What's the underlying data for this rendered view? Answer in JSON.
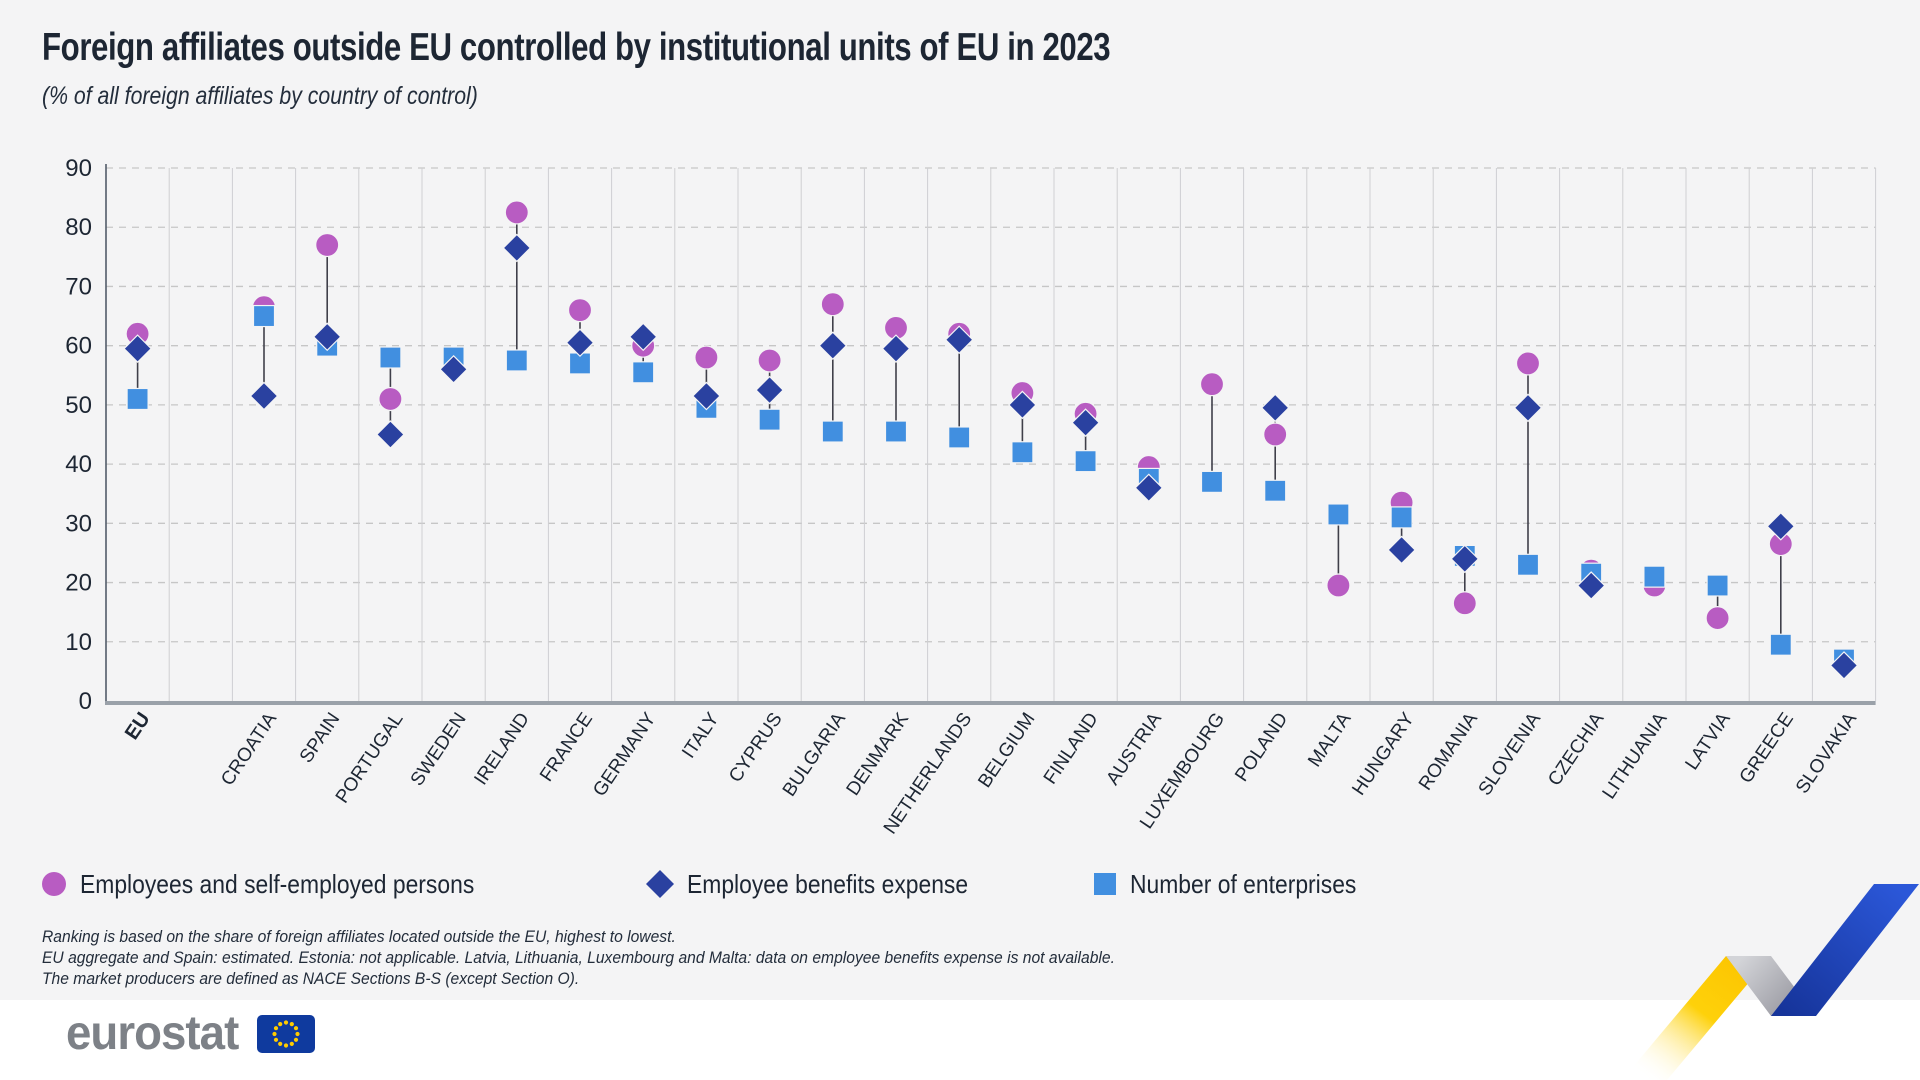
{
  "page": {
    "title": "Foreign affiliates outside EU controlled by institutional units of EU in 2023",
    "subtitle": "(% of all foreign affiliates by country of control)",
    "footnotes": [
      "Ranking is based on the share of foreign affiliates located outside the EU, highest to lowest.",
      "EU aggregate and Spain: estimated. Estonia: not applicable. Latvia, Lithuania, Luxembourg and Malta: data on employee benefits expense is not available.",
      "The market producers are defined as NACE Sections B-S (except Section O)."
    ],
    "brand": "eurostat"
  },
  "legend": [
    {
      "label": "Employees and self-employed persons",
      "marker": "circle",
      "color": "#b85cc2"
    },
    {
      "label": "Employee benefits expense",
      "marker": "diamond",
      "color": "#2a41a0"
    },
    {
      "label": "Number of enterprises",
      "marker": "square",
      "color": "#418fe0"
    }
  ],
  "colors": {
    "accent_circle": "#b85cc2",
    "accent_diamond": "#2a41a0",
    "accent_square": "#418fe0",
    "connector": "#3f3f4a",
    "grid_dashed": "#c6c6c6",
    "grid_vertical": "#cfcfd2",
    "axis_left": "#525c69",
    "axis_bottom": "#9aa1a9",
    "background": "#f4f4f5",
    "eu_flag_blue": "#0f3a9e",
    "eu_flag_stars": "#ffcc00",
    "ribbon_yellow": "#fed10a",
    "ribbon_blue": "#2450cd"
  },
  "chart_data": {
    "type": "scatter",
    "title": "Foreign affiliates outside EU controlled by institutional units of EU in 2023",
    "subtitle": "(% of all foreign affiliates by country of control)",
    "ylim": [
      0,
      90
    ],
    "yticks": [
      0,
      10,
      20,
      30,
      40,
      50,
      60,
      70,
      80,
      90
    ],
    "grid": "horizontal dashed, vertical solid column separators",
    "legend_position": "bottom-left",
    "note": "Categories ranked highest to lowest; EU aggregate separated by an empty column; null = data not available",
    "categories": [
      "EU",
      "CROATIA",
      "SPAIN",
      "PORTUGAL",
      "SWEDEN",
      "IRELAND",
      "FRANCE",
      "GERMANY",
      "ITALY",
      "CYPRUS",
      "BULGARIA",
      "DENMARK",
      "NETHERLANDS",
      "BELGIUM",
      "FINLAND",
      "AUSTRIA",
      "LUXEMBOURG",
      "POLAND",
      "MALTA",
      "HUNGARY",
      "ROMANIA",
      "SLOVENIA",
      "CZECHIA",
      "LITHUANIA",
      "LATVIA",
      "GREECE",
      "SLOVAKIA"
    ],
    "series": [
      {
        "name": "Employees and self-employed persons",
        "marker": "circle",
        "color": "#b85cc2",
        "values": [
          62,
          66.5,
          77,
          51,
          57.8,
          82.5,
          66,
          60,
          58,
          57.5,
          67,
          63,
          62,
          52,
          48.5,
          39.5,
          53.5,
          45,
          19.5,
          33.5,
          16.5,
          57,
          22,
          19.5,
          14,
          26.5,
          6.5
        ]
      },
      {
        "name": "Employee benefits expense",
        "marker": "diamond",
        "color": "#2a41a0",
        "values": [
          59.5,
          51.5,
          61.5,
          45,
          56,
          76.5,
          60.5,
          61.5,
          51.5,
          52.5,
          60,
          59.5,
          61,
          50,
          47,
          36,
          null,
          49.5,
          null,
          25.5,
          24,
          49.5,
          19.5,
          null,
          null,
          29.5,
          6
        ]
      },
      {
        "name": "Number of enterprises",
        "marker": "square",
        "color": "#418fe0",
        "values": [
          51,
          65,
          60,
          58,
          58,
          57.5,
          57,
          55.5,
          49.5,
          47.5,
          45.5,
          45.5,
          44.5,
          42,
          40.5,
          37.5,
          37,
          35.5,
          31.5,
          31,
          24.5,
          23,
          21.5,
          21,
          19.5,
          9.5,
          7
        ]
      }
    ]
  }
}
